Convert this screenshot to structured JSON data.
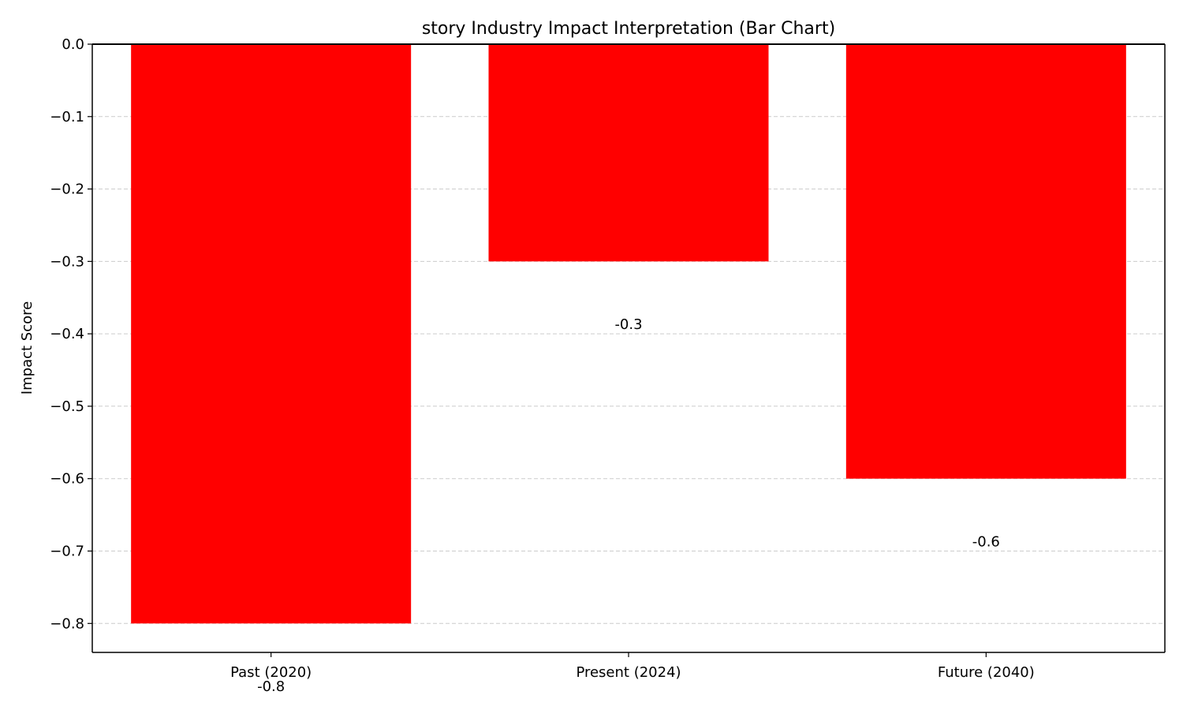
{
  "chart_data": {
    "type": "bar",
    "title": "story Industry Impact Interpretation (Bar Chart)",
    "xlabel": "",
    "ylabel": "Impact Score",
    "categories": [
      "Past (2020)",
      "Present (2024)",
      "Future (2040)"
    ],
    "values": [
      -0.8,
      -0.3,
      -0.6
    ],
    "data_labels": [
      "-0.8",
      "-0.3",
      "-0.6"
    ],
    "ylim": [
      -0.84,
      0.0
    ],
    "yticks": [
      0.0,
      -0.1,
      -0.2,
      -0.3,
      -0.4,
      -0.5,
      -0.6,
      -0.7,
      -0.8
    ],
    "ytick_labels": [
      "0.0",
      "−0.1",
      "−0.2",
      "−0.3",
      "−0.4",
      "−0.5",
      "−0.6",
      "−0.7",
      "−0.8"
    ],
    "grid": "y-dashed",
    "bar_color": "#ff0000",
    "grid_color": "#cccccc"
  }
}
